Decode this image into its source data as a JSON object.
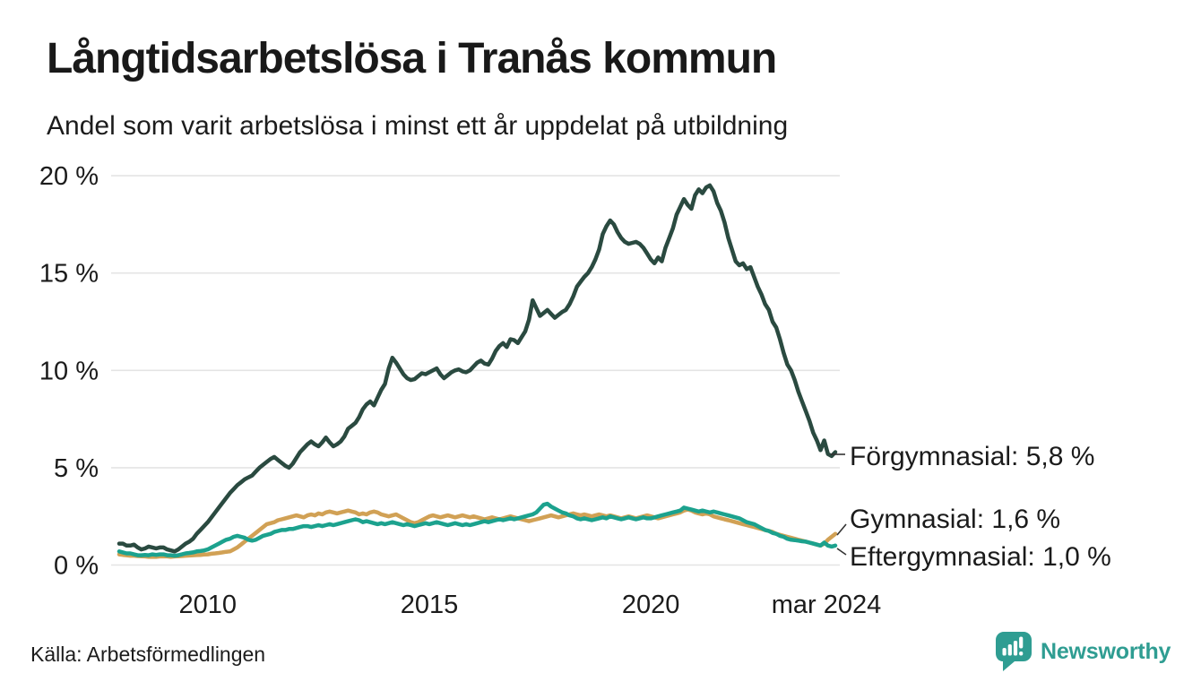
{
  "header": {
    "title": "Långtidsarbetslösa i Tranås kommun",
    "subtitle": "Andel som varit arbetslösa i minst ett år uppdelat på utbildning"
  },
  "footer": {
    "source": "Källa: Arbetsförmedlingen",
    "brand": "Newsworthy"
  },
  "colors": {
    "grid": "#e4e4e4",
    "text": "#1b1b1b",
    "connector": "#333333",
    "brand_teal": "#2f9d92",
    "background": "#ffffff"
  },
  "chart_data": {
    "type": "line",
    "title": "Långtidsarbetslösa i Tranås kommun",
    "subtitle": "Andel som varit arbetslösa i minst ett år uppdelat på utbildning",
    "x_unit": "month",
    "grid": true,
    "legend_position": "end-of-line-labels",
    "ylim": [
      0,
      20.5
    ],
    "y_axis": {
      "ticks": [
        {
          "label": "0 %",
          "value": 0
        },
        {
          "label": "5 %",
          "value": 5
        },
        {
          "label": "10 %",
          "value": 10
        },
        {
          "label": "15 %",
          "value": 15
        },
        {
          "label": "20 %",
          "value": 20
        }
      ]
    },
    "x_axis": {
      "ticks": [
        {
          "label": "2010",
          "month_index": 24
        },
        {
          "label": "2015",
          "month_index": 84
        },
        {
          "label": "2020",
          "month_index": 144
        },
        {
          "label": "mar 2024",
          "month_index": 194
        }
      ]
    },
    "series": [
      {
        "key": "forgymnasial",
        "name": "Förgymnasial",
        "end_label": "Förgymnasial: 5,8 %",
        "latest_value": 5.8,
        "color": "#2a4a40",
        "values": [
          1.1,
          1.1,
          1.0,
          1.0,
          1.05,
          0.9,
          0.8,
          0.85,
          0.95,
          0.9,
          0.85,
          0.9,
          0.9,
          0.8,
          0.75,
          0.7,
          0.8,
          0.95,
          1.1,
          1.2,
          1.35,
          1.6,
          1.8,
          2.0,
          2.2,
          2.45,
          2.7,
          2.95,
          3.2,
          3.45,
          3.7,
          3.9,
          4.1,
          4.25,
          4.4,
          4.5,
          4.6,
          4.8,
          5.0,
          5.15,
          5.3,
          5.45,
          5.55,
          5.4,
          5.25,
          5.1,
          5.0,
          5.2,
          5.5,
          5.8,
          6.0,
          6.2,
          6.35,
          6.2,
          6.1,
          6.3,
          6.55,
          6.3,
          6.1,
          6.2,
          6.35,
          6.6,
          7.0,
          7.15,
          7.3,
          7.6,
          8.0,
          8.25,
          8.4,
          8.2,
          8.6,
          9.0,
          9.3,
          10.1,
          10.65,
          10.4,
          10.1,
          9.8,
          9.6,
          9.5,
          9.55,
          9.7,
          9.85,
          9.8,
          9.9,
          10.0,
          10.1,
          9.8,
          9.6,
          9.75,
          9.9,
          10.0,
          10.05,
          9.95,
          9.9,
          10.0,
          10.2,
          10.4,
          10.5,
          10.35,
          10.3,
          10.6,
          11.0,
          11.25,
          11.4,
          11.2,
          11.6,
          11.55,
          11.4,
          11.7,
          12.0,
          12.6,
          13.6,
          13.2,
          12.8,
          12.95,
          13.1,
          12.9,
          12.7,
          12.85,
          13.0,
          13.1,
          13.4,
          13.8,
          14.3,
          14.55,
          14.8,
          15.0,
          15.3,
          15.7,
          16.2,
          17.0,
          17.4,
          17.7,
          17.5,
          17.1,
          16.8,
          16.6,
          16.5,
          16.55,
          16.6,
          16.5,
          16.3,
          16.0,
          15.7,
          15.5,
          15.8,
          15.6,
          16.3,
          16.8,
          17.3,
          18.0,
          18.4,
          18.8,
          18.5,
          18.3,
          19.0,
          19.3,
          19.1,
          19.4,
          19.5,
          19.2,
          18.6,
          18.2,
          17.6,
          16.8,
          16.2,
          15.6,
          15.4,
          15.5,
          15.2,
          15.3,
          14.8,
          14.3,
          13.9,
          13.4,
          13.1,
          12.5,
          12.2,
          11.6,
          10.9,
          10.3,
          10.0,
          9.5,
          8.9,
          8.4,
          7.9,
          7.4,
          6.8,
          6.4,
          5.9,
          6.4,
          5.7,
          5.6,
          5.8
        ]
      },
      {
        "key": "gymnasial",
        "name": "Gymnasial",
        "end_label": "Gymnasial: 1,6 %",
        "latest_value": 1.6,
        "color": "#d1a155",
        "values": [
          0.55,
          0.52,
          0.5,
          0.48,
          0.48,
          0.46,
          0.45,
          0.44,
          0.42,
          0.42,
          0.42,
          0.44,
          0.45,
          0.44,
          0.42,
          0.44,
          0.45,
          0.46,
          0.48,
          0.49,
          0.5,
          0.51,
          0.52,
          0.54,
          0.55,
          0.58,
          0.6,
          0.62,
          0.65,
          0.68,
          0.7,
          0.8,
          0.9,
          1.05,
          1.2,
          1.35,
          1.5,
          1.65,
          1.8,
          1.95,
          2.1,
          2.15,
          2.2,
          2.3,
          2.35,
          2.4,
          2.45,
          2.5,
          2.55,
          2.5,
          2.45,
          2.55,
          2.6,
          2.55,
          2.65,
          2.6,
          2.7,
          2.75,
          2.7,
          2.65,
          2.7,
          2.75,
          2.8,
          2.75,
          2.7,
          2.6,
          2.65,
          2.6,
          2.7,
          2.75,
          2.7,
          2.6,
          2.55,
          2.5,
          2.55,
          2.6,
          2.5,
          2.4,
          2.3,
          2.2,
          2.15,
          2.2,
          2.3,
          2.4,
          2.5,
          2.55,
          2.5,
          2.45,
          2.5,
          2.55,
          2.5,
          2.45,
          2.5,
          2.55,
          2.5,
          2.45,
          2.5,
          2.45,
          2.4,
          2.35,
          2.4,
          2.45,
          2.4,
          2.35,
          2.4,
          2.45,
          2.5,
          2.45,
          2.4,
          2.35,
          2.3,
          2.25,
          2.3,
          2.35,
          2.4,
          2.45,
          2.5,
          2.55,
          2.5,
          2.45,
          2.5,
          2.55,
          2.6,
          2.65,
          2.6,
          2.55,
          2.6,
          2.55,
          2.5,
          2.55,
          2.6,
          2.55,
          2.5,
          2.55,
          2.5,
          2.45,
          2.4,
          2.45,
          2.5,
          2.45,
          2.4,
          2.45,
          2.5,
          2.55,
          2.5,
          2.45,
          2.4,
          2.45,
          2.5,
          2.55,
          2.6,
          2.65,
          2.7,
          2.8,
          2.85,
          2.8,
          2.7,
          2.65,
          2.6,
          2.65,
          2.6,
          2.5,
          2.45,
          2.4,
          2.35,
          2.3,
          2.25,
          2.2,
          2.15,
          2.1,
          2.05,
          2.0,
          1.95,
          1.9,
          1.85,
          1.8,
          1.75,
          1.7,
          1.6,
          1.55,
          1.5,
          1.45,
          1.4,
          1.35,
          1.3,
          1.25,
          1.2,
          1.15,
          1.1,
          1.05,
          1.0,
          1.1,
          1.3,
          1.45,
          1.6
        ]
      },
      {
        "key": "eftergymnasial",
        "name": "Eftergymnasial",
        "end_label": "Eftergymnasial: 1,0 %",
        "latest_value": 1.0,
        "color": "#1ca28e",
        "values": [
          0.7,
          0.65,
          0.6,
          0.6,
          0.55,
          0.5,
          0.5,
          0.52,
          0.5,
          0.55,
          0.52,
          0.55,
          0.55,
          0.5,
          0.5,
          0.48,
          0.5,
          0.55,
          0.6,
          0.62,
          0.65,
          0.7,
          0.72,
          0.75,
          0.8,
          0.9,
          1.0,
          1.1,
          1.2,
          1.3,
          1.35,
          1.45,
          1.5,
          1.45,
          1.4,
          1.3,
          1.25,
          1.3,
          1.4,
          1.5,
          1.55,
          1.6,
          1.7,
          1.75,
          1.8,
          1.8,
          1.85,
          1.85,
          1.9,
          1.95,
          2.0,
          2.0,
          1.95,
          2.0,
          2.05,
          2.0,
          2.05,
          2.1,
          2.05,
          2.1,
          2.15,
          2.2,
          2.25,
          2.3,
          2.35,
          2.3,
          2.2,
          2.25,
          2.2,
          2.15,
          2.1,
          2.15,
          2.1,
          2.15,
          2.2,
          2.15,
          2.1,
          2.05,
          2.1,
          2.05,
          2.0,
          2.05,
          2.1,
          2.15,
          2.1,
          2.15,
          2.2,
          2.15,
          2.1,
          2.05,
          2.1,
          2.15,
          2.1,
          2.05,
          2.1,
          2.05,
          2.1,
          2.15,
          2.2,
          2.25,
          2.2,
          2.25,
          2.3,
          2.35,
          2.3,
          2.35,
          2.4,
          2.35,
          2.4,
          2.45,
          2.5,
          2.55,
          2.6,
          2.7,
          2.9,
          3.1,
          3.15,
          3.0,
          2.9,
          2.8,
          2.7,
          2.65,
          2.55,
          2.5,
          2.4,
          2.35,
          2.4,
          2.35,
          2.3,
          2.35,
          2.4,
          2.45,
          2.4,
          2.5,
          2.45,
          2.4,
          2.35,
          2.4,
          2.45,
          2.4,
          2.35,
          2.4,
          2.45,
          2.4,
          2.4,
          2.45,
          2.5,
          2.55,
          2.6,
          2.65,
          2.7,
          2.75,
          2.8,
          2.95,
          2.9,
          2.85,
          2.8,
          2.75,
          2.8,
          2.75,
          2.7,
          2.75,
          2.7,
          2.65,
          2.6,
          2.55,
          2.5,
          2.45,
          2.4,
          2.3,
          2.2,
          2.15,
          2.1,
          2.0,
          1.9,
          1.8,
          1.75,
          1.65,
          1.6,
          1.5,
          1.45,
          1.35,
          1.3,
          1.28,
          1.25,
          1.22,
          1.2,
          1.15,
          1.1,
          1.05,
          1.0,
          1.15,
          1.0,
          0.95,
          1.0
        ]
      }
    ]
  }
}
